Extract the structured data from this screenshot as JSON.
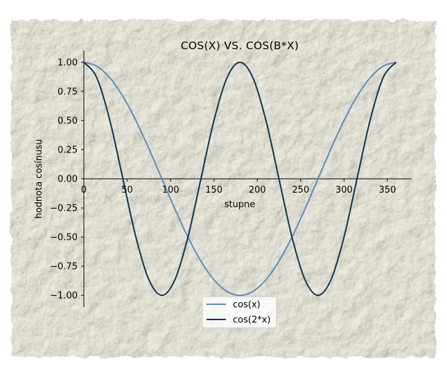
{
  "chart_data": {
    "type": "line",
    "title": "COS(X) VS. COS(B*X)",
    "xlabel": "stupne",
    "ylabel": "hodnota cosínusu",
    "xlim": [
      0,
      378
    ],
    "ylim": [
      -1.1,
      1.1
    ],
    "x_ticks": [
      0,
      50,
      100,
      150,
      200,
      250,
      300,
      350
    ],
    "x_tick_labels": [
      "0",
      "50",
      "100",
      "150",
      "200",
      "250",
      "300",
      "350"
    ],
    "y_ticks": [
      1.0,
      0.75,
      0.5,
      0.25,
      0.0,
      -0.25,
      -0.5,
      -0.75,
      -1.0
    ],
    "y_tick_labels": [
      "1.00",
      "0.75",
      "0.50",
      "0.25",
      "0.00",
      "−0.25",
      "−0.50",
      "−0.75",
      "−1.00"
    ],
    "grid": false,
    "legend_position": "bottom-center",
    "series": [
      {
        "name": "cos(x)",
        "color": "#5b8db8",
        "x": [
          0,
          15,
          30,
          45,
          60,
          75,
          90,
          105,
          120,
          135,
          150,
          165,
          180,
          195,
          210,
          225,
          240,
          255,
          270,
          285,
          300,
          315,
          330,
          345,
          360
        ],
        "y": [
          1.0,
          0.966,
          0.866,
          0.707,
          0.5,
          0.259,
          0.0,
          -0.259,
          -0.5,
          -0.707,
          -0.866,
          -0.966,
          -1.0,
          -0.966,
          -0.866,
          -0.707,
          -0.5,
          -0.259,
          0.0,
          0.259,
          0.5,
          0.707,
          0.866,
          0.966,
          1.0
        ]
      },
      {
        "name": "cos(2*x)",
        "color": "#0b3553",
        "x": [
          0,
          15,
          30,
          45,
          60,
          75,
          90,
          105,
          120,
          135,
          150,
          165,
          180,
          195,
          210,
          225,
          240,
          255,
          270,
          285,
          300,
          315,
          330,
          345,
          360
        ],
        "y": [
          1.0,
          0.866,
          0.5,
          0.0,
          -0.5,
          -0.866,
          -1.0,
          -0.866,
          -0.5,
          0.0,
          0.5,
          0.866,
          1.0,
          0.866,
          0.5,
          0.0,
          -0.5,
          -0.866,
          -1.0,
          -0.866,
          -0.5,
          0.0,
          0.5,
          0.866,
          1.0
        ]
      }
    ]
  }
}
